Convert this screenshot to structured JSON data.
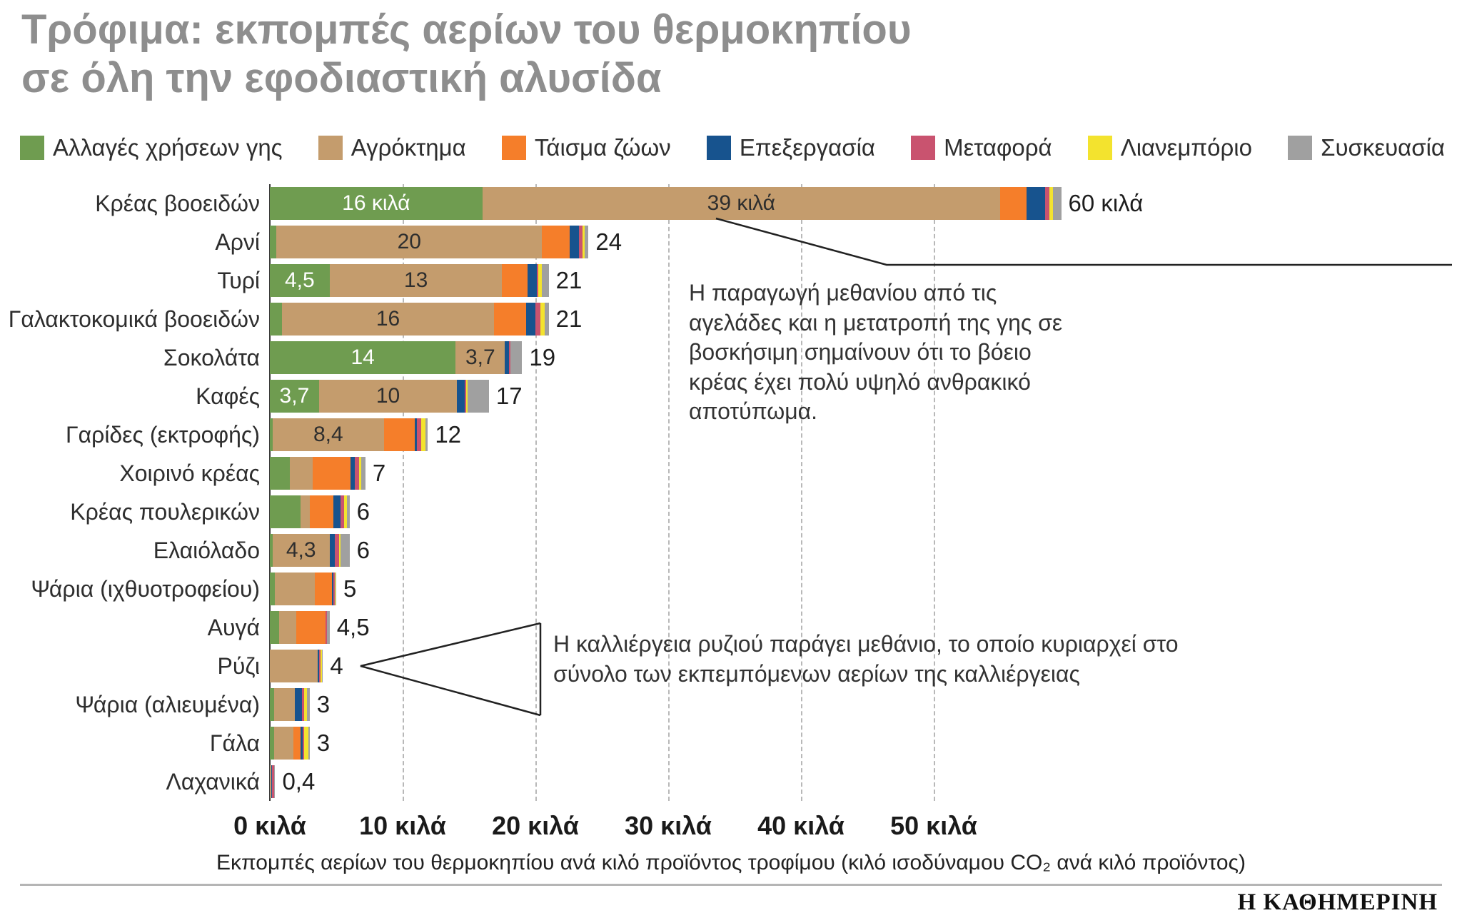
{
  "title": {
    "line1": "Τρόφιμα: εκπομπές αερίων του θερμοκηπίου",
    "line2": "σε όλη την εφοδιαστική αλυσίδα"
  },
  "legend": [
    {
      "label": "Αλλαγές χρήσεων γης",
      "color": "#6f9c50"
    },
    {
      "label": "Αγρόκτημα",
      "color": "#c49c6d"
    },
    {
      "label": "Τάισμα ζώων",
      "color": "#f57e2a"
    },
    {
      "label": "Επεξεργασία",
      "color": "#17538e"
    },
    {
      "label": "Μεταφορά",
      "color": "#c9536f"
    },
    {
      "label": "Λιανεμπόριο",
      "color": "#f3e32e"
    },
    {
      "label": "Συσκευασία",
      "color": "#a0a0a0"
    }
  ],
  "chart_data": {
    "type": "bar",
    "stacked": true,
    "orientation": "horizontal",
    "unit": "κιλά",
    "xlim": [
      0,
      62
    ],
    "grid": "vertical-dashed",
    "legend_position": "top",
    "series": [
      "Αλλαγές χρήσεων γης",
      "Αγρόκτημα",
      "Τάισμα ζώων",
      "Επεξεργασία",
      "Μεταφορά",
      "Λιανεμπόριο",
      "Συσκευασία"
    ],
    "xticks": [
      {
        "value": 0,
        "label": "0 κιλά"
      },
      {
        "value": 10,
        "label": "10 κιλά"
      },
      {
        "value": 20,
        "label": "20 κιλά"
      },
      {
        "value": 30,
        "label": "30 κιλά"
      },
      {
        "value": 40,
        "label": "40 κιλά"
      },
      {
        "value": 50,
        "label": "50 κιλά"
      }
    ],
    "rows": [
      {
        "label": "Κρέας βοοειδών",
        "values": [
          16,
          39,
          2.0,
          1.4,
          0.3,
          0.3,
          0.6
        ],
        "total": 60,
        "total_label": "60 κιλά",
        "segment_labels": [
          {
            "segment": 0,
            "text": "16 κιλά",
            "style": "light"
          },
          {
            "segment": 1,
            "text": "39 κιλά",
            "style": "dark"
          }
        ]
      },
      {
        "label": "Αρνί",
        "values": [
          0.5,
          20,
          2.1,
          0.7,
          0.25,
          0.15,
          0.3
        ],
        "total": 24,
        "total_label": "24",
        "segment_labels": [
          {
            "segment": 1,
            "text": "20",
            "style": "dark"
          }
        ]
      },
      {
        "label": "Τυρί",
        "values": [
          4.5,
          13,
          1.9,
          0.7,
          0.1,
          0.3,
          0.5
        ],
        "total": 21,
        "total_label": "21",
        "segment_labels": [
          {
            "segment": 0,
            "text": "4,5",
            "style": "light"
          },
          {
            "segment": 1,
            "text": "13",
            "style": "dark"
          }
        ]
      },
      {
        "label": "Γαλακτοκομικά βοοειδών",
        "values": [
          0.9,
          16,
          2.4,
          0.7,
          0.4,
          0.3,
          0.3
        ],
        "total": 21,
        "total_label": "21",
        "segment_labels": [
          {
            "segment": 1,
            "text": "16",
            "style": "dark"
          }
        ]
      },
      {
        "label": "Σοκολάτα",
        "values": [
          14,
          3.7,
          0,
          0.3,
          0.1,
          0,
          0.9
        ],
        "total": 19,
        "total_label": "19",
        "segment_labels": [
          {
            "segment": 0,
            "text": "14",
            "style": "light"
          },
          {
            "segment": 1,
            "text": "3,7",
            "style": "dark"
          }
        ]
      },
      {
        "label": "Καφές",
        "values": [
          3.7,
          10.4,
          0,
          0.6,
          0.1,
          0.1,
          1.6
        ],
        "total": 17,
        "total_label": "17",
        "segment_labels": [
          {
            "segment": 0,
            "text": "3,7",
            "style": "light"
          },
          {
            "segment": 1,
            "text": "10",
            "style": "dark"
          }
        ]
      },
      {
        "label": "Γαρίδες (εκτροφής)",
        "values": [
          0.2,
          8.4,
          2.3,
          0.2,
          0.3,
          0.3,
          0.2
        ],
        "total": 12,
        "total_label": "12",
        "segment_labels": [
          {
            "segment": 1,
            "text": "8,4",
            "style": "dark"
          }
        ]
      },
      {
        "label": "Χοιρινό κρέας",
        "values": [
          1.5,
          1.7,
          2.9,
          0.3,
          0.3,
          0.2,
          0.3
        ],
        "total": 7,
        "total_label": "7",
        "segment_labels": []
      },
      {
        "label": "Κρέας πουλερικών",
        "values": [
          2.3,
          0.7,
          1.8,
          0.5,
          0.3,
          0.2,
          0.2
        ],
        "total": 6,
        "total_label": "6",
        "segment_labels": []
      },
      {
        "label": "Ελαιόλαδο",
        "values": [
          0.2,
          4.3,
          0,
          0.4,
          0.3,
          0.1,
          0.7
        ],
        "total": 6,
        "total_label": "6",
        "segment_labels": [
          {
            "segment": 1,
            "text": "4,3",
            "style": "dark"
          }
        ]
      },
      {
        "label": "Ψάρια (ιχθυοτροφείου)",
        "values": [
          0.4,
          3.0,
          1.3,
          0.1,
          0.1,
          0.05,
          0.05
        ],
        "total": 5,
        "total_label": "5",
        "segment_labels": []
      },
      {
        "label": "Αυγά",
        "values": [
          0.7,
          1.3,
          2.2,
          0,
          0.1,
          0,
          0.2
        ],
        "total": 4.5,
        "total_label": "4,5",
        "segment_labels": []
      },
      {
        "label": "Ρύζι",
        "values": [
          0,
          3.6,
          0,
          0.1,
          0.1,
          0.1,
          0.1
        ],
        "total": 4,
        "total_label": "4",
        "segment_labels": []
      },
      {
        "label": "Ψάρια (αλιευμένα)",
        "values": [
          0.3,
          1.6,
          0,
          0.5,
          0.2,
          0.2,
          0.2
        ],
        "total": 3,
        "total_label": "3",
        "segment_labels": []
      },
      {
        "label": "Γάλα",
        "values": [
          0.3,
          1.5,
          0.5,
          0.2,
          0.1,
          0.3,
          0.1
        ],
        "total": 3,
        "total_label": "3",
        "segment_labels": []
      },
      {
        "label": "Λαχανικά",
        "values": [
          0,
          0.1,
          0,
          0.05,
          0.15,
          0.05,
          0.05
        ],
        "total": 0.4,
        "total_label": "0,4",
        "segment_labels": []
      }
    ],
    "xlabel": "Εκπομπές αερίων του θερμοκηπίου ανά κιλό προϊόντος τροφίμου (κιλό ισοδύναμου CO₂ ανά κιλό προϊόντος)"
  },
  "annotations": {
    "beef": "Η παραγωγή μεθανίου από τις αγελάδες και η μετατροπή της γης σε βοσκήσιμη σημαίνουν ότι το βόειο κρέας έχει πολύ υψηλό ανθρακικό αποτύπωμα.",
    "rice": "Η καλλιέργεια ρυζιού παράγει μεθάνιο, το οποίο κυριαρχεί στο σύνολο των εκπεμπόμενων αερίων της καλλιέργειας"
  },
  "footer": {
    "brand": "Η ΚΑΘΗΜΕΡΙΝΗ"
  }
}
